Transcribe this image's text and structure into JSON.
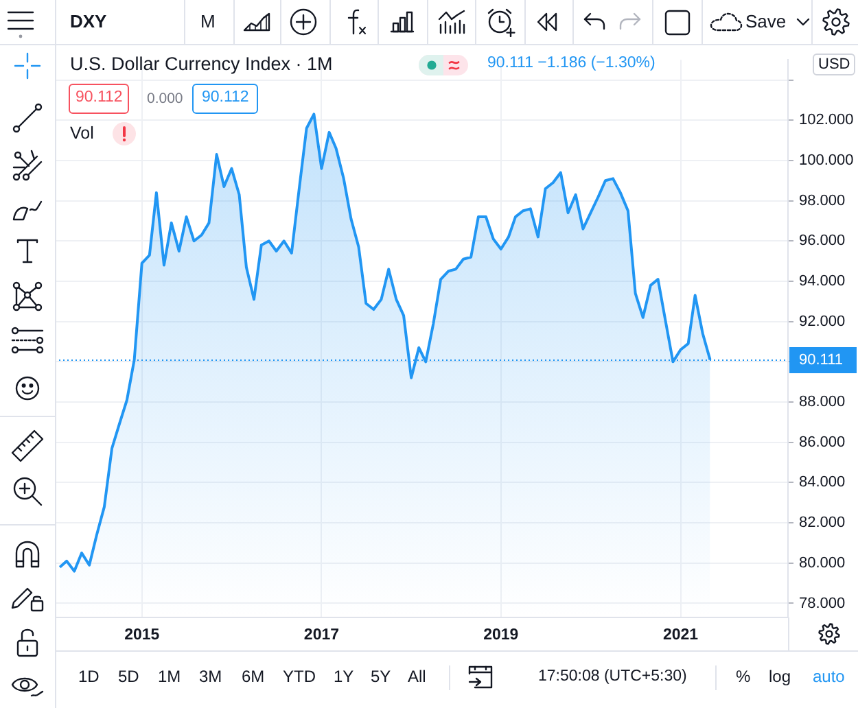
{
  "chart_data": {
    "type": "area",
    "title": "U.S. Dollar Currency Index · 1M",
    "subtitle": "90.111  −1.186 (−1.30%)",
    "x": [
      "2014-02",
      "2014-03",
      "2014-04",
      "2014-05",
      "2014-06",
      "2014-07",
      "2014-08",
      "2014-09",
      "2014-10",
      "2014-11",
      "2014-12",
      "2015-01",
      "2015-02",
      "2015-03",
      "2015-04",
      "2015-05",
      "2015-06",
      "2015-07",
      "2015-08",
      "2015-09",
      "2015-10",
      "2015-11",
      "2015-12",
      "2016-01",
      "2016-02",
      "2016-03",
      "2016-04",
      "2016-05",
      "2016-06",
      "2016-07",
      "2016-08",
      "2016-09",
      "2016-10",
      "2016-11",
      "2016-12",
      "2017-01",
      "2017-02",
      "2017-03",
      "2017-04",
      "2017-05",
      "2017-06",
      "2017-07",
      "2017-08",
      "2017-09",
      "2017-10",
      "2017-11",
      "2017-12",
      "2018-01",
      "2018-02",
      "2018-03",
      "2018-04",
      "2018-05",
      "2018-06",
      "2018-07",
      "2018-08",
      "2018-09",
      "2018-10",
      "2018-11",
      "2018-12",
      "2019-01",
      "2019-02",
      "2019-03",
      "2019-04",
      "2019-05",
      "2019-06",
      "2019-07",
      "2019-08",
      "2019-09",
      "2019-10",
      "2019-11",
      "2019-12",
      "2020-01",
      "2020-02",
      "2020-03",
      "2020-04",
      "2020-05",
      "2020-06",
      "2020-07",
      "2020-08",
      "2020-09",
      "2020-10",
      "2020-11",
      "2020-12",
      "2021-01",
      "2021-02",
      "2021-03",
      "2021-04",
      "2021-05"
    ],
    "series": [
      {
        "color": "#2196f3",
        "values": [
          79.8,
          80.1,
          79.6,
          80.5,
          79.9,
          81.4,
          82.8,
          85.7,
          86.9,
          88.1,
          90.1,
          94.9,
          95.3,
          98.4,
          94.8,
          96.9,
          95.5,
          97.2,
          96.0,
          96.3,
          96.9,
          100.3,
          98.7,
          99.6,
          98.3,
          94.7,
          93.1,
          95.8,
          96.0,
          95.5,
          96.0,
          95.4,
          98.5,
          101.6,
          102.3,
          99.6,
          101.4,
          100.6,
          99.1,
          97.1,
          95.7,
          92.9,
          92.6,
          93.1,
          94.6,
          93.1,
          92.3,
          89.2,
          90.7,
          90.0,
          91.9,
          94.1,
          94.5,
          94.6,
          95.1,
          95.2,
          97.2,
          97.2,
          96.1,
          95.6,
          96.2,
          97.2,
          97.5,
          97.6,
          96.2,
          98.6,
          98.9,
          99.4,
          97.4,
          98.3,
          96.6,
          97.4,
          98.2,
          99.0,
          99.1,
          98.4,
          97.5,
          93.4,
          92.2,
          93.8,
          94.1,
          92.0,
          90.0,
          90.6,
          90.9,
          93.3,
          91.4,
          90.1
        ]
      }
    ],
    "xlim": [
      "2014-01-12",
      "2022-03-14"
    ],
    "xticks": [
      "2015",
      "2017",
      "2019",
      "2021"
    ],
    "ylim": [
      77.3,
      105.0
    ],
    "yticks": [
      {
        "value": 78,
        "label": "78.000"
      },
      {
        "value": 80,
        "label": "80.000"
      },
      {
        "value": 82,
        "label": "82.000"
      },
      {
        "value": 84,
        "label": "84.000"
      },
      {
        "value": 86,
        "label": "86.000"
      },
      {
        "value": 88,
        "label": "88.000"
      },
      {
        "value": 90,
        "label": null
      },
      {
        "value": 92,
        "label": "92.000"
      },
      {
        "value": 94,
        "label": "94.000"
      },
      {
        "value": 96,
        "label": "96.000"
      },
      {
        "value": 98,
        "label": "98.000"
      },
      {
        "value": 100,
        "label": "100.000"
      },
      {
        "value": 102,
        "label": "102.000"
      },
      {
        "value": 104,
        "label": null
      }
    ],
    "grid": true,
    "ref_lines": [
      {
        "axis": "y",
        "value": 90.111,
        "label": "90.111",
        "color": "#2196f3",
        "line_style": "dotted"
      }
    ],
    "annotations": [
      "90.112",
      "0.000",
      "90.112",
      "Vol",
      "DXY",
      "M",
      "Save",
      "USD",
      "1D",
      "5D",
      "1M",
      "3M",
      "6M",
      "YTD",
      "1Y",
      "5Y",
      "All",
      "17:50:08 (UTC+5:30)",
      "%",
      "log",
      "auto"
    ]
  }
}
